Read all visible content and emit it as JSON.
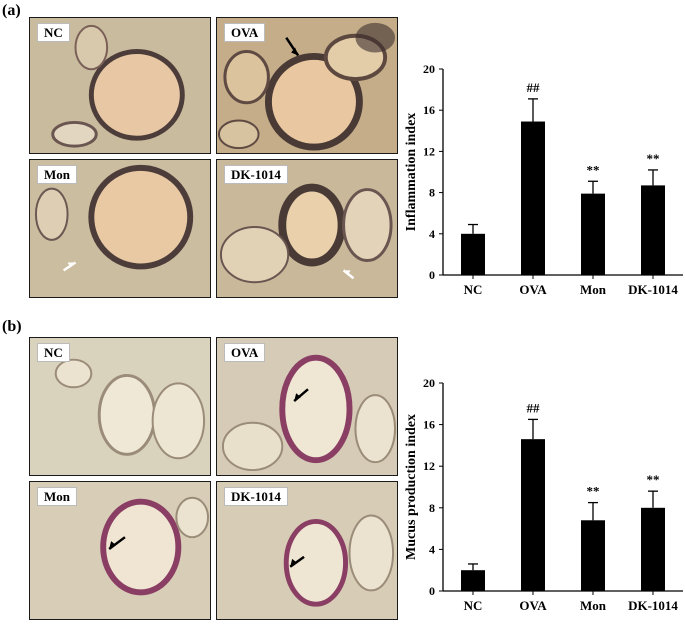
{
  "panels": [
    {
      "label": "(a)",
      "images": [
        {
          "label": "NC"
        },
        {
          "label": "OVA"
        },
        {
          "label": "Mon"
        },
        {
          "label": "DK-1014"
        }
      ]
    },
    {
      "label": "(b)",
      "images": [
        {
          "label": "NC"
        },
        {
          "label": "OVA"
        },
        {
          "label": "Mon"
        },
        {
          "label": "DK-1014"
        }
      ]
    }
  ],
  "chart_data": [
    {
      "type": "bar",
      "categories": [
        "NC",
        "OVA",
        "Mon",
        "DK-1014"
      ],
      "values": [
        4.0,
        14.9,
        7.9,
        8.7
      ],
      "errors": [
        0.9,
        2.2,
        1.2,
        1.5
      ],
      "annotations": [
        "",
        "##",
        "**",
        "**"
      ],
      "ylabel": "Inflammation  index",
      "ylim": [
        0,
        20
      ],
      "yticks": [
        0,
        4,
        8,
        12,
        16,
        20
      ],
      "grid": false,
      "bar_color": "#000000"
    },
    {
      "type": "bar",
      "categories": [
        "NC",
        "OVA",
        "Mon",
        "DK-1014"
      ],
      "values": [
        2.0,
        14.6,
        6.8,
        8.0
      ],
      "errors": [
        0.6,
        1.9,
        1.7,
        1.6
      ],
      "annotations": [
        "",
        "##",
        "**",
        "**"
      ],
      "ylabel": "Mucus production  index",
      "ylim": [
        0,
        20
      ],
      "yticks": [
        0,
        4,
        8,
        12,
        16,
        20
      ],
      "grid": false,
      "bar_color": "#000000"
    }
  ]
}
